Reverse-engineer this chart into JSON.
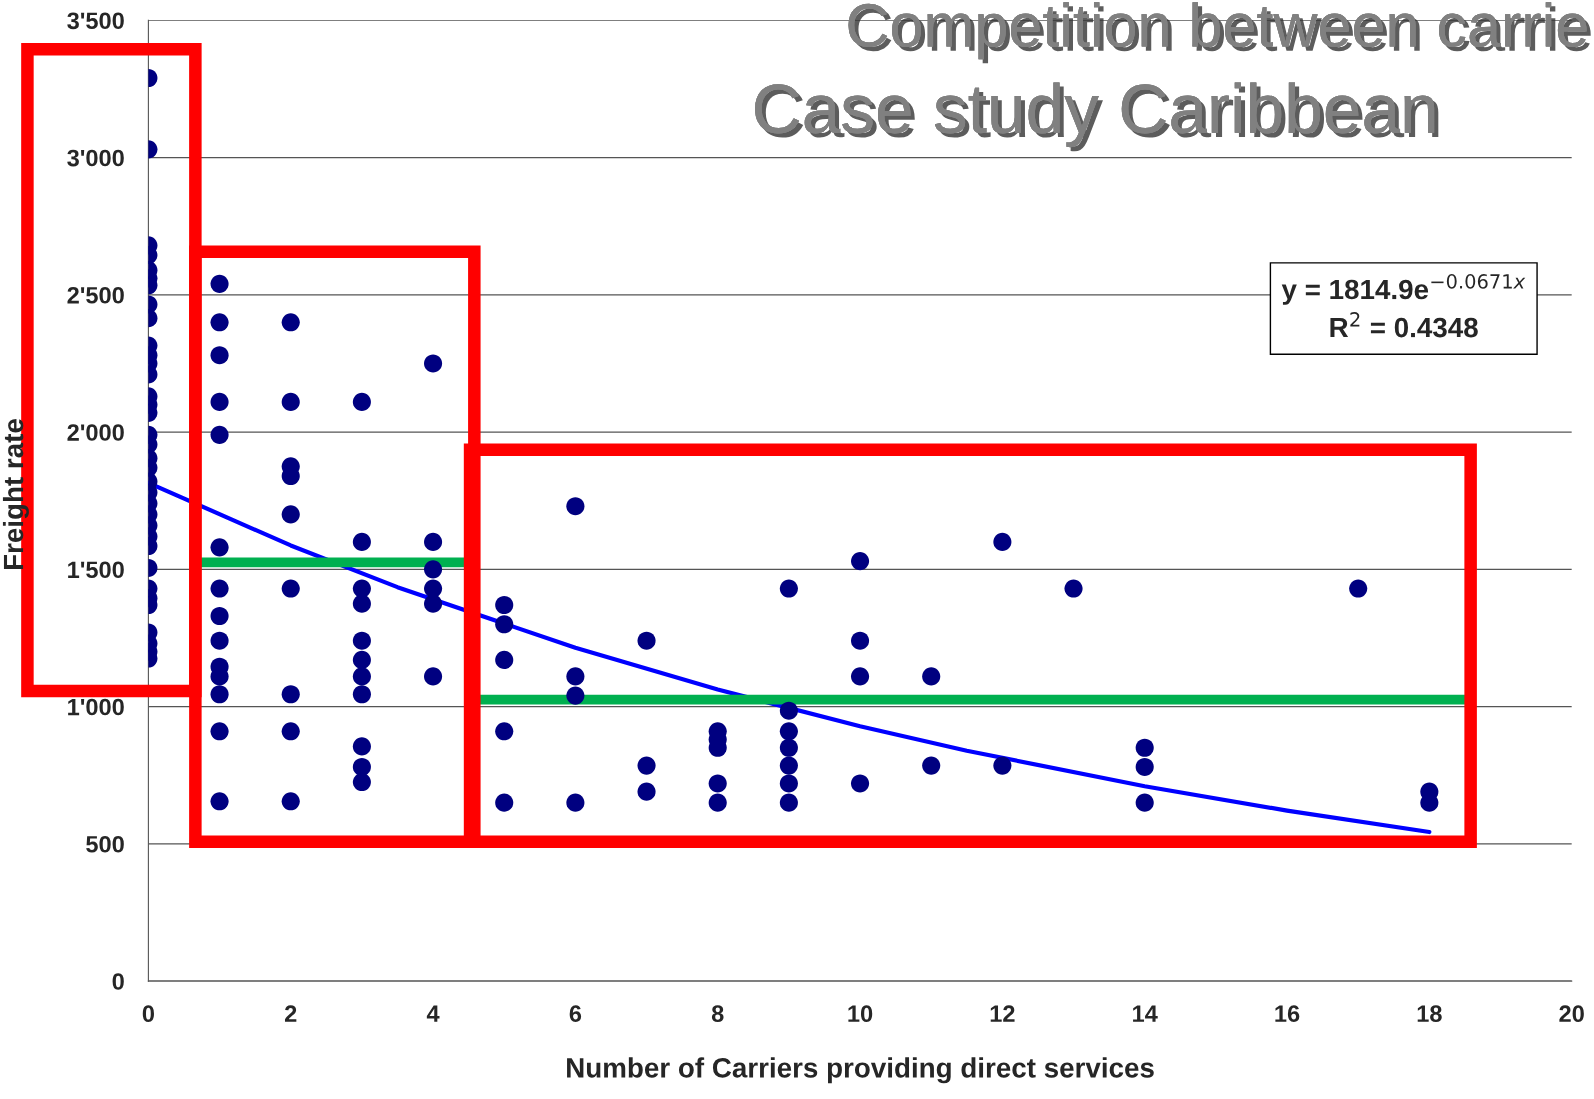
{
  "chart_data": {
    "type": "scatter",
    "title": "Competition between carrie",
    "subtitle": "Case study Caribbean",
    "xlabel": "Number of Carriers providing direct services",
    "ylabel": "Freight rate",
    "annotations": [
      "y = 1814.9e$^{−0.0671x}$\nR$^{2}$ = 0.4348"
    ],
    "series": [
      {
        "color": "#000080",
        "marker": "circle",
        "x": [
          0,
          0,
          0,
          0,
          0,
          0,
          0,
          0,
          0,
          0,
          0,
          0,
          0,
          0,
          0,
          0,
          0,
          0,
          0,
          0,
          0,
          0,
          0,
          0,
          0,
          0,
          0,
          0,
          0,
          0,
          0,
          0,
          0,
          0,
          0,
          1,
          1,
          1,
          1,
          1,
          1,
          1,
          1,
          1,
          1,
          1,
          1,
          1,
          1,
          2,
          2,
          2,
          2,
          2,
          2,
          2,
          2,
          2,
          3,
          3,
          3,
          3,
          3,
          3,
          3,
          3,
          3,
          3,
          3,
          4,
          4,
          4,
          4,
          4,
          4,
          5,
          5,
          5,
          5,
          5,
          6,
          6,
          6,
          6,
          7,
          7,
          7,
          8,
          8,
          8,
          8,
          8,
          9,
          9,
          9,
          9,
          9,
          9,
          9,
          10,
          10,
          10,
          10,
          11,
          11,
          12,
          12,
          13,
          14,
          14,
          14,
          17,
          18,
          18
        ],
        "values": [
          3290,
          3030,
          2680,
          2645,
          2590,
          2560,
          2535,
          2465,
          2415,
          2315,
          2280,
          2250,
          2210,
          2130,
          2100,
          2070,
          1990,
          1955,
          1905,
          1870,
          1820,
          1780,
          1740,
          1700,
          1660,
          1620,
          1585,
          1505,
          1430,
          1395,
          1370,
          1270,
          1230,
          1200,
          1175,
          2540,
          2400,
          2280,
          2110,
          1990,
          1580,
          1430,
          1330,
          1240,
          1145,
          1110,
          1045,
          910,
          655,
          2400,
          2110,
          1875,
          1840,
          1700,
          1430,
          1045,
          910,
          655,
          2110,
          1600,
          1430,
          1375,
          1240,
          1170,
          1110,
          1045,
          855,
          780,
          725,
          2250,
          1600,
          1500,
          1430,
          1375,
          1110,
          1370,
          1300,
          1170,
          910,
          650,
          1730,
          1110,
          1040,
          650,
          1240,
          785,
          690,
          910,
          880,
          850,
          720,
          650,
          1430,
          985,
          910,
          850,
          785,
          720,
          650,
          1530,
          1240,
          1110,
          720,
          1110,
          785,
          1600,
          785,
          1430,
          850,
          780,
          650,
          1430,
          690,
          650
        ]
      },
      {
        "type": "line",
        "color": "#0000ff",
        "line_style": "solid",
        "x": [
          0,
          2,
          3.5,
          6,
          8,
          10,
          11.5,
          14,
          16,
          18
        ],
        "values": [
          1815,
          1587,
          1435,
          1214,
          1062,
          928,
          839,
          710,
          621,
          543
        ]
      },
      {
        "type": "line",
        "color": "#00b050",
        "line_style": "solid",
        "x": [
          0.75,
          4.5
        ],
        "values": [
          1525,
          1525
        ]
      },
      {
        "type": "line",
        "color": "#00b050",
        "line_style": "solid",
        "x": [
          4.6,
          18.5
        ],
        "values": [
          1025,
          1025
        ]
      }
    ],
    "xlim": [
      0,
      20
    ],
    "xticks": [
      0,
      2,
      4,
      6,
      8,
      10,
      12,
      14,
      16,
      18,
      20
    ],
    "ylim": [
      0,
      3500
    ],
    "yticks": [
      {
        "value": 0,
        "label": "0"
      },
      {
        "value": 500,
        "label": "500"
      },
      {
        "value": 1000,
        "label": "1'000"
      },
      {
        "value": 1500,
        "label": "1'500"
      },
      {
        "value": 2000,
        "label": "2'000"
      },
      {
        "value": 2500,
        "label": "2'500"
      },
      {
        "value": 3000,
        "label": "3'000"
      },
      {
        "value": 3500,
        "label": "3'500"
      }
    ],
    "grid": "y",
    "legend": false
  }
}
